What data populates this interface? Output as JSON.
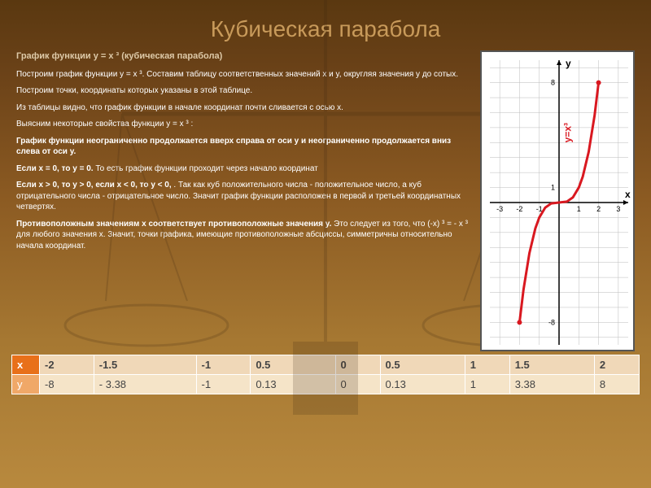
{
  "title": "Кубическая парабола",
  "subtitle": "График функции y =  x ³  (кубическая парабола)",
  "p1": "Построим график функции y = x ³. Составим таблицу соответственных значений x и y, округляя значения y до сотых.",
  "p2": "Построим точки, координаты которых указаны в этой таблице.",
  "p3": "Из таблицы видно, что график функции в начале координат почти сливается с осью x.",
  "p4": "Выясним некоторые свойства функции y = x ³ :",
  "p5": "График функции неограниченно продолжается вверх справа от оси y и неограниченно продолжается вниз слева от оси y.",
  "p6a": "Если x = 0, то y = 0.",
  "p6b": " То есть график функции проходит через начало координат",
  "p7a": "Если x > 0, то y > 0, если x < 0, то y < 0, ",
  "p7b": ". Так как куб положительного числа - положительное число, а куб отрицательного числа - отрицательное число. Значит график функции расположен в первой и третьей координатных четвертях.",
  "p8a": "Противоположным значениям x соответствует противоположные значения y.",
  "p8b": " Это следует из того, что (-x)  ³  = - x ³   для любого значения x. Значит, точки графика, имеющие противоположные абсциссы, симметричны относительно начала координат.",
  "table": {
    "headers_row": [
      "x",
      "-2",
      "-1.5",
      "-1",
      "0.5",
      "0",
      "0.5",
      "1",
      "1.5",
      "2"
    ],
    "data_row": [
      "y",
      "-8",
      "- 3.38",
      "-1",
      "0.13",
      "0",
      "0.13",
      "1",
      "3.38",
      "8"
    ]
  },
  "chart": {
    "type": "line",
    "function_label": "y=x³",
    "curve_color": "#d91820",
    "grid_color": "#bbbbbb",
    "axis_color": "#000000",
    "bg": "#ffffff",
    "x_ticks": [
      -3,
      -2,
      -1,
      1,
      2,
      3
    ],
    "y_ticks": [
      -8,
      1,
      8
    ],
    "ylabel": "y",
    "xlabel": "x",
    "xlim": [
      -3.5,
      3.5
    ],
    "ylim": [
      -9.5,
      9.5
    ],
    "points": [
      [
        -2,
        -8
      ],
      [
        -1.8,
        -5.83
      ],
      [
        -1.5,
        -3.38
      ],
      [
        -1.2,
        -1.73
      ],
      [
        -1,
        -1
      ],
      [
        -0.7,
        -0.34
      ],
      [
        -0.4,
        -0.064
      ],
      [
        0,
        0
      ],
      [
        0.4,
        0.064
      ],
      [
        0.7,
        0.34
      ],
      [
        1,
        1
      ],
      [
        1.2,
        1.73
      ],
      [
        1.5,
        3.38
      ],
      [
        1.8,
        5.83
      ],
      [
        2,
        8
      ]
    ]
  }
}
